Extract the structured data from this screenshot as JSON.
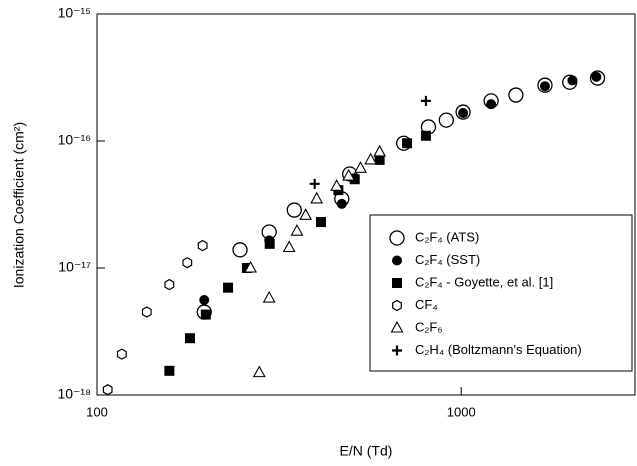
{
  "chart_data": {
    "type": "scatter",
    "xlabel": "E/N (Td)",
    "ylabel": "Ionization Coefficient (cm²)",
    "xscale": "log",
    "yscale": "log",
    "xlim": [
      100,
      3000
    ],
    "ylim": [
      1e-18,
      1e-15
    ],
    "xticks": [
      100,
      1000
    ],
    "yticks": [
      {
        "value": 1e-18,
        "label": "10⁻¹⁸"
      },
      {
        "value": 1e-17,
        "label": "10⁻¹⁷"
      },
      {
        "value": 1e-16,
        "label": "10⁻¹⁶"
      },
      {
        "value": 1e-15,
        "label": "10⁻¹⁵"
      }
    ],
    "legend": "lower right",
    "series": [
      {
        "name": "C₂F₄ (ATS)",
        "color": "#000000",
        "marker": "open-circle",
        "x": [
          197,
          247,
          297,
          348,
          470,
          494,
          695,
          813,
          910,
          1012,
          1208,
          1413,
          1698,
          1986,
          2367
        ],
        "values": [
          4.5e-18,
          1.39e-17,
          1.92e-17,
          2.86e-17,
          3.5e-17,
          5.5e-17,
          9.6e-17,
          1.29e-16,
          1.46e-16,
          1.69e-16,
          2.07e-16,
          2.3e-16,
          2.75e-16,
          2.9e-16,
          3.13e-16
        ]
      },
      {
        "name": "C₂F₄ (SST)",
        "color": "#000000",
        "marker": "filled-circle",
        "x": [
          197,
          297,
          470,
          510,
          1012,
          1208,
          1698,
          2020,
          2350
        ],
        "values": [
          5.6e-18,
          1.65e-17,
          3.2e-17,
          5.1e-17,
          1.66e-16,
          1.95e-16,
          2.7e-16,
          3e-16,
          3.2e-16
        ]
      },
      {
        "name": "C₂F₄ - Goyette, et al. [1]",
        "color": "#000000",
        "marker": "square",
        "x": [
          158,
          180,
          199,
          229,
          258,
          298,
          412,
          460,
          510,
          597,
          710,
          800
        ],
        "values": [
          1.55e-18,
          2.8e-18,
          4.3e-18,
          7e-18,
          1e-17,
          1.55e-17,
          2.3e-17,
          4.1e-17,
          5e-17,
          7.1e-17,
          9.6e-17,
          1.1e-16
        ]
      },
      {
        "name": "CF₄",
        "color": "#000000",
        "marker": "hexagon",
        "x": [
          107,
          117,
          137,
          158,
          177,
          195
        ],
        "values": [
          1.1e-18,
          2.1e-18,
          4.5e-18,
          7.4e-18,
          1.1e-17,
          1.5e-17
        ]
      },
      {
        "name": "C₂F₆",
        "color": "#000000",
        "marker": "triangle",
        "x": [
          279,
          297,
          264,
          337,
          354,
          374,
          401,
          455,
          491,
          529,
          564,
          597
        ],
        "values": [
          1.5e-18,
          5.8e-18,
          1e-17,
          1.45e-17,
          1.95e-17,
          2.6e-17,
          3.5e-17,
          4.4e-17,
          5.3e-17,
          6.1e-17,
          7.1e-17,
          8.2e-17
        ]
      },
      {
        "name": "C₂H₄ (Boltzmann's Equation)",
        "color": "#000000",
        "marker": "plus",
        "x": [
          396,
          800
        ],
        "values": [
          4.6e-17,
          2.07e-16
        ]
      }
    ]
  }
}
